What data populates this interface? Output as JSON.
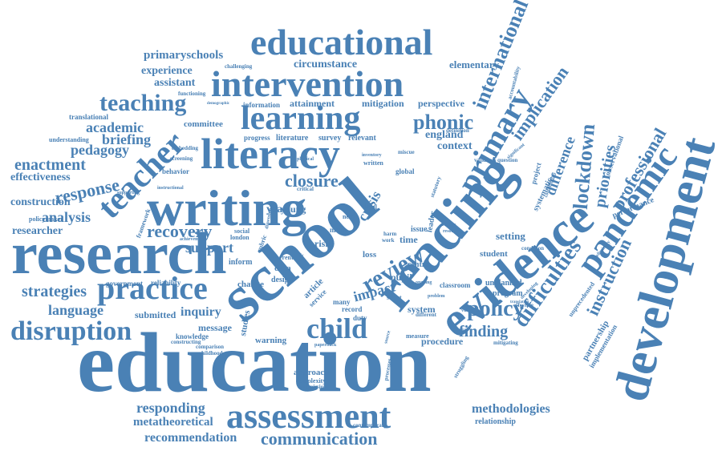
{
  "colors": {
    "word": "#4a81b5",
    "background": "#ffffff"
  },
  "words": {
    "education": "education",
    "school": "school",
    "research": "research",
    "reading": "reading",
    "development": "development",
    "evidence": "evidence",
    "writing": "writing",
    "literacy": "literacy",
    "intervention": "intervention",
    "educational": "educational",
    "assessment": "assessment",
    "pandemic": "pandemic",
    "teacher": "teacher",
    "learning": "learning",
    "practice": "practice",
    "primary": "primary",
    "disruption": "disruption",
    "child": "child",
    "communication": "communication",
    "teaching": "teaching",
    "policy": "policy",
    "review": "review",
    "difficulties": "difficulties",
    "lockdown": "lockdown",
    "phonic": "phonic",
    "international": "international",
    "implication": "implication",
    "finding": "finding",
    "closure": "closure",
    "strategies": "strategies",
    "response": "response",
    "enactment": "enactment",
    "recovery": "recovery",
    "instruction": "instruction",
    "professional": "professional",
    "priorities": "priorities",
    "difference": "difference",
    "language": "language",
    "analysis": "analysis",
    "pedagogy": "pedagogy",
    "academic": "academic",
    "briefing": "briefing",
    "effectiveness": "effectiveness",
    "construction": "construction",
    "researcher": "researcher",
    "primaryschools": "primaryschools",
    "experience": "experience",
    "assistant": "assistant",
    "circumstance": "circumstance",
    "attainment": "attainment",
    "mitigation": "mitigation",
    "perspective": "perspective",
    "elementary": "elementary",
    "responding": "responding",
    "metatheoretical": "metatheoretical",
    "recommendation": "recommendation",
    "methodologies": "methodologies",
    "relationship": "relationship",
    "crisis": "crisis",
    "impact": "impact",
    "support": "support",
    "inquiry": "inquiry",
    "england": "england",
    "context": "context",
    "year": "year",
    "young": "young",
    "literature": "literature",
    "survey": "survey",
    "relevant": "relevant",
    "progress": "progress",
    "committee": "committee",
    "translational": "translational",
    "understanding": "understanding",
    "policymaker": "policymaker",
    "framework": "framework",
    "government": "government",
    "submitted": "submitted",
    "message": "message",
    "warning": "warning",
    "approach": "approach",
    "complexity": "complexity",
    "submission": "submission",
    "contemporary": "contemporary",
    "student": "student",
    "setting": "setting",
    "program": "program",
    "unplanned": "unplanned",
    "system": "system",
    "procedure": "procedure",
    "performance": "performance",
    "partnership": "partnership",
    "implementation": "implementation",
    "systematic": "systematic",
    "project": "project",
    "observational": "observational",
    "accountability": "accountability",
    "unprecedented": "unprecedented",
    "information": "information",
    "challenging": "challenging",
    "functioning": "functioning",
    "behavior": "behavior",
    "screening": "screening",
    "embedding": "embedding",
    "reliability": "reliability",
    "knowledge": "knowledge",
    "comparison": "comparison",
    "childhood": "childhood",
    "constructing": "constructing",
    "data": "data",
    "design": "design",
    "change": "change",
    "inform": "inform",
    "risk": "risk",
    "loss": "loss",
    "pupil": "pupil",
    "centre": "centre",
    "time": "time",
    "article": "article",
    "service": "service",
    "many": "many",
    "record": "record",
    "duty": "duty",
    "select": "select",
    "issue": "issue",
    "leader": "leader",
    "global": "global",
    "written": "written",
    "harm": "harm",
    "work": "work",
    "local": "local",
    "need": "need",
    "more": "more",
    "social": "social",
    "london": "london",
    "studies": "studies",
    "measure": "measure",
    "secondary": "secondary",
    "processes": "processes",
    "effective": "effective",
    "condition": "condition",
    "question": "question",
    "validity": "validity",
    "definition": "definition",
    "mitigating": "mitigating",
    "struggling": "struggling",
    "different": "different",
    "paperback": "paperback",
    "society": "society",
    "resource": "resource",
    "classroom": "classroom",
    "problem": "problem",
    "ongoing": "ongoing",
    "current": "current",
    "critical": "critical",
    "physical": "physical",
    "dimension": "dimension",
    "achievement": "achievement",
    "rubric": "rubric",
    "logic": "logic",
    "source": "source",
    "miscue": "miscue",
    "inventory": "inventory",
    "statutory": "statutory",
    "developing": "developing",
    "preliminary": "preliminary",
    "communities": "communities",
    "significant": "significant",
    "vulnerable": "vulnerable",
    "translation": "translation",
    "supporting": "supporting",
    "instructional": "instructional",
    "demographic": "demographic"
  }
}
